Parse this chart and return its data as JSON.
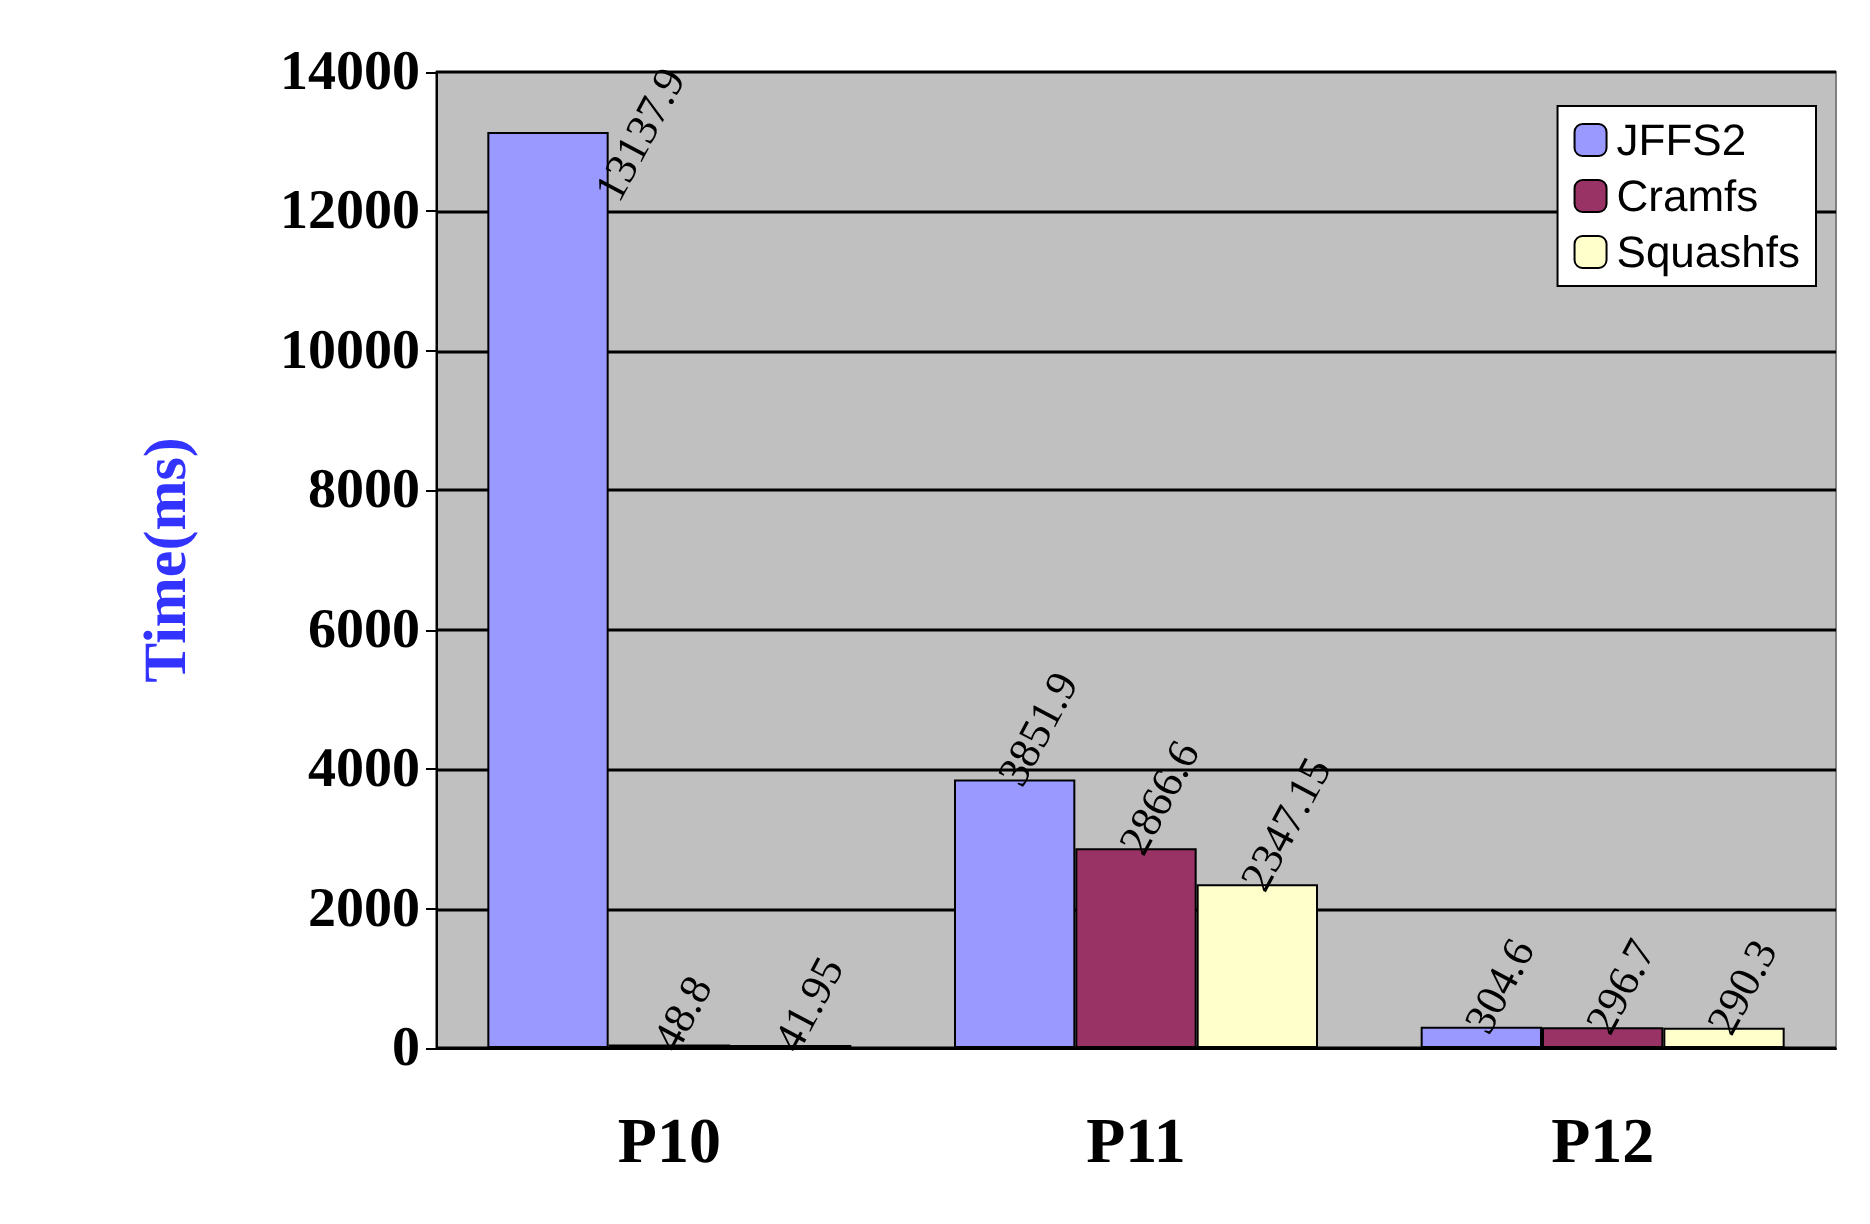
{
  "chart_data": {
    "type": "bar",
    "ylabel": "Time(ms)",
    "categories": [
      "P10",
      "P11",
      "P12"
    ],
    "series": [
      {
        "name": "JFFS2",
        "color": "#9999ff",
        "values": [
          13137.9,
          3851.9,
          304.6
        ]
      },
      {
        "name": "Cramfs",
        "color": "#993366",
        "values": [
          48.8,
          2866.6,
          296.7
        ]
      },
      {
        "name": "Squashfs",
        "color": "#ffffcc",
        "values": [
          41.95,
          2347.15,
          290.3
        ]
      }
    ],
    "ylim": [
      0,
      14000
    ],
    "yticks": [
      0,
      2000,
      4000,
      6000,
      8000,
      10000,
      12000,
      14000
    ],
    "grid": "y",
    "legend": "top right",
    "data_labels": true
  }
}
